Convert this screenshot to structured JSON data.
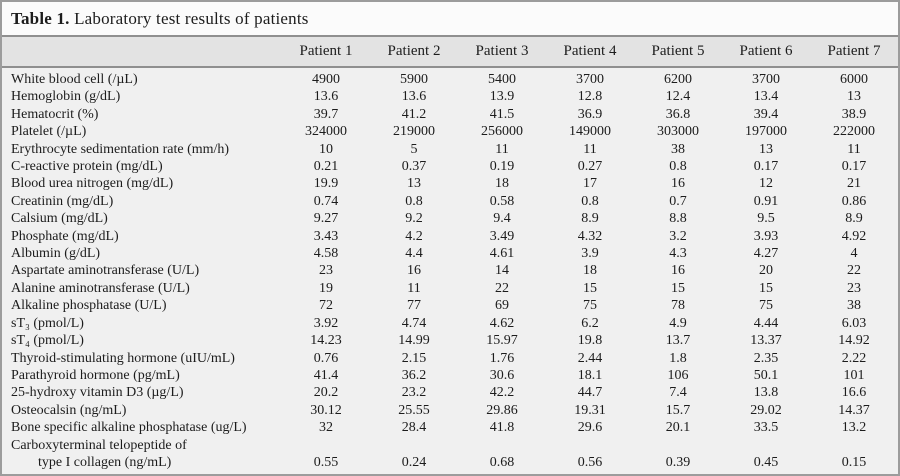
{
  "title": {
    "label": "Table 1.",
    "text": "Laboratory test results of patients"
  },
  "colors": {
    "card_background": "#f0f0f0",
    "title_background": "#fbfbfb",
    "header_background": "#e3e3e3",
    "rule": "#8f8f8f",
    "frame_border": "#9c9c9c",
    "text": "#1c1c1c"
  },
  "table": {
    "columns": [
      "Patient 1",
      "Patient 2",
      "Patient 3",
      "Patient 4",
      "Patient 5",
      "Patient 6",
      "Patient 7"
    ],
    "rows": [
      {
        "label": "White blood cell (/µL)",
        "values": [
          "4900",
          "5900",
          "5400",
          "3700",
          "6200",
          "3700",
          "6000"
        ]
      },
      {
        "label": "Hemoglobin (g/dL)",
        "values": [
          "13.6",
          "13.6",
          "13.9",
          "12.8",
          "12.4",
          "13.4",
          "13"
        ]
      },
      {
        "label": "Hematocrit (%)",
        "values": [
          "39.7",
          "41.2",
          "41.5",
          "36.9",
          "36.8",
          "39.4",
          "38.9"
        ]
      },
      {
        "label": "Platelet (/µL)",
        "values": [
          "324000",
          "219000",
          "256000",
          "149000",
          "303000",
          "197000",
          "222000"
        ]
      },
      {
        "label": "Erythrocyte sedimentation rate (mm/h)",
        "values": [
          "10",
          "5",
          "11",
          "11",
          "38",
          "13",
          "11"
        ]
      },
      {
        "label": "C-reactive protein (mg/dL)",
        "values": [
          "0.21",
          "0.37",
          "0.19",
          "0.27",
          "0.8",
          "0.17",
          "0.17"
        ]
      },
      {
        "label": "Blood urea nitrogen (mg/dL)",
        "values": [
          "19.9",
          "13",
          "18",
          "17",
          "16",
          "12",
          "21"
        ]
      },
      {
        "label": "Creatinin (mg/dL)",
        "values": [
          "0.74",
          "0.8",
          "0.58",
          "0.8",
          "0.7",
          "0.91",
          "0.86"
        ]
      },
      {
        "label": "Calsium (mg/dL)",
        "values": [
          "9.27",
          "9.2",
          "9.4",
          "8.9",
          "8.8",
          "9.5",
          "8.9"
        ]
      },
      {
        "label": "Phosphate (mg/dL)",
        "values": [
          "3.43",
          "4.2",
          "3.49",
          "4.32",
          "3.2",
          "3.93",
          "4.92"
        ]
      },
      {
        "label": "Albumin (g/dL)",
        "values": [
          "4.58",
          "4.4",
          "4.61",
          "3.9",
          "4.3",
          "4.27",
          "4"
        ]
      },
      {
        "label": "Aspartate aminotransferase (U/L)",
        "values": [
          "23",
          "16",
          "14",
          "18",
          "16",
          "20",
          "22"
        ]
      },
      {
        "label": "Alanine aminotransferase (U/L)",
        "values": [
          "19",
          "11",
          "22",
          "15",
          "15",
          "15",
          "23"
        ]
      },
      {
        "label": "Alkaline phosphatase (U/L)",
        "values": [
          "72",
          "77",
          "69",
          "75",
          "78",
          "75",
          "38"
        ]
      },
      {
        "label": "sT₃ (pmol/L)",
        "values": [
          "3.92",
          "4.74",
          "4.62",
          "6.2",
          "4.9",
          "4.44",
          "6.03"
        ]
      },
      {
        "label": "sT₄ (pmol/L)",
        "values": [
          "14.23",
          "14.99",
          "15.97",
          "19.8",
          "13.7",
          "13.37",
          "14.92"
        ]
      },
      {
        "label": "Thyroid-stimulating hormone (uIU/mL)",
        "values": [
          "0.76",
          "2.15",
          "1.76",
          "2.44",
          "1.8",
          "2.35",
          "2.22"
        ]
      },
      {
        "label": "Parathyroid hormone (pg/mL)",
        "values": [
          "41.4",
          "36.2",
          "30.6",
          "18.1",
          "106",
          "50.1",
          "101"
        ]
      },
      {
        "label": "25-hydroxy vitamin D3 (µg/L)",
        "values": [
          "20.2",
          "23.2",
          "42.2",
          "44.7",
          "7.4",
          "13.8",
          "16.6"
        ]
      },
      {
        "label": "Osteocalsin (ng/mL)",
        "values": [
          "30.12",
          "25.55",
          "29.86",
          "19.31",
          "15.7",
          "29.02",
          "14.37"
        ]
      },
      {
        "label": "Bone specific alkaline phosphatase (ug/L)",
        "values": [
          "32",
          "28.4",
          "41.8",
          "29.6",
          "20.1",
          "33.5",
          "13.2"
        ]
      },
      {
        "label": "Carboxyterminal telopeptide of",
        "label2": "type I collagen (ng/mL)",
        "values": [
          "0.55",
          "0.24",
          "0.68",
          "0.56",
          "0.39",
          "0.45",
          "0.15"
        ]
      }
    ]
  }
}
